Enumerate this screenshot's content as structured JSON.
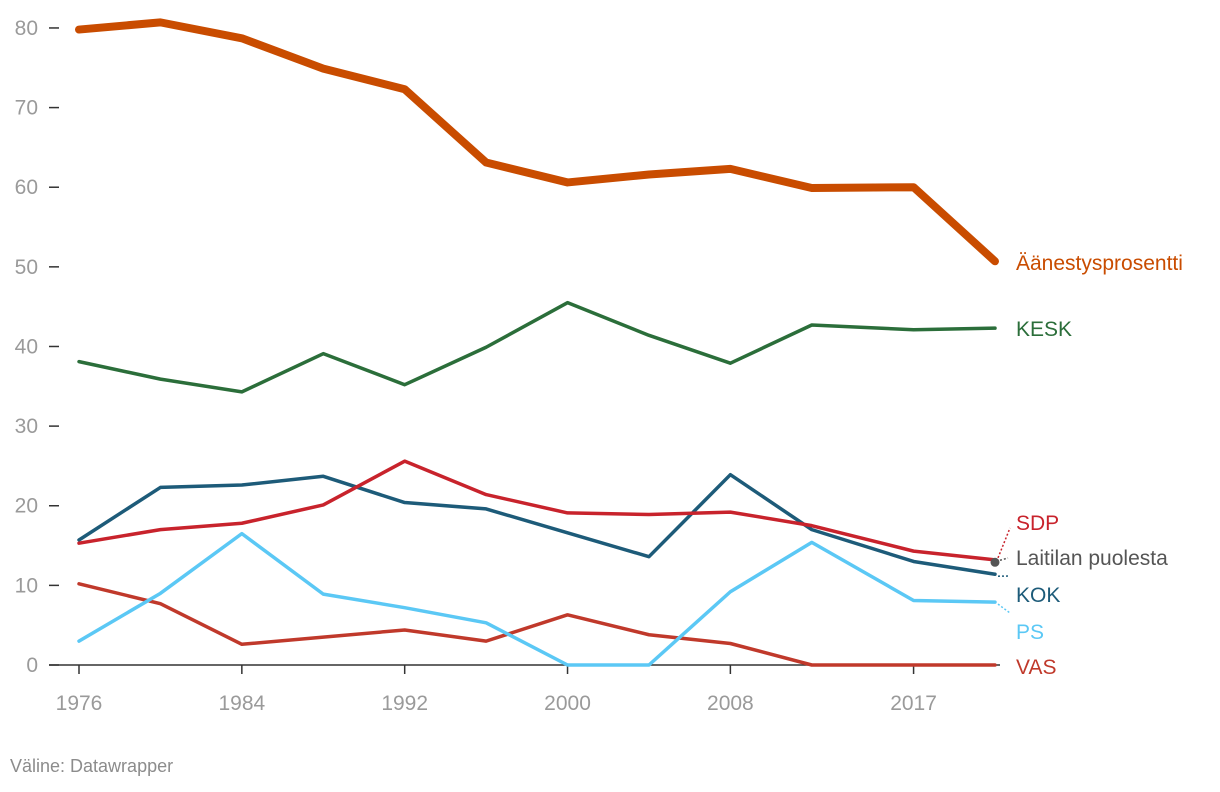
{
  "chart_data": {
    "type": "line",
    "x": [
      1976,
      1980,
      1984,
      1988,
      1992,
      1996,
      2000,
      2004,
      2008,
      2012,
      2017,
      2021
    ],
    "xticks": [
      "1976",
      "1984",
      "1992",
      "2000",
      "2008",
      "2017"
    ],
    "yticks": [
      "0",
      "10",
      "20",
      "30",
      "40",
      "50",
      "60",
      "70",
      "80"
    ],
    "ylim": [
      0,
      82
    ],
    "grid": false,
    "series": [
      {
        "name": "VAS",
        "color": "#c0392b",
        "values": [
          10.2,
          7.7,
          2.6,
          3.5,
          4.4,
          3.0,
          6.3,
          3.8,
          2.7,
          0,
          0,
          0
        ]
      },
      {
        "name": "PS",
        "color": "#5bc8f5",
        "values": [
          3.0,
          9.0,
          16.5,
          8.9,
          7.2,
          5.3,
          0,
          0,
          9.2,
          15.4,
          8.1,
          7.9
        ]
      },
      {
        "name": "KOK",
        "color": "#1d5b79",
        "values": [
          15.7,
          22.3,
          22.6,
          23.7,
          20.4,
          19.6,
          16.6,
          13.6,
          23.9,
          17.0,
          13.0,
          11.4
        ]
      },
      {
        "name": "SDP",
        "color": "#c8232c",
        "values": [
          15.3,
          17.0,
          17.8,
          20.1,
          25.6,
          21.4,
          19.1,
          18.9,
          19.2,
          17.5,
          14.3,
          13.2
        ]
      },
      {
        "name": "KESK",
        "color": "#2b6e3a",
        "values": [
          38.1,
          35.9,
          34.3,
          39.1,
          35.2,
          39.9,
          45.5,
          41.4,
          37.9,
          42.7,
          42.1,
          42.3
        ]
      },
      {
        "name": "Äänestysprosentti",
        "color": "#c94c00",
        "values": [
          79.8,
          80.7,
          78.7,
          74.9,
          72.3,
          63.1,
          60.6,
          61.6,
          62.3,
          59.9,
          60.0,
          50.7
        ]
      }
    ],
    "annotations": [
      {
        "name": "Laitilan puolesta",
        "color": "#555555",
        "x": 2021,
        "value": 12.9
      }
    ]
  },
  "source": "Väline: Datawrapper"
}
